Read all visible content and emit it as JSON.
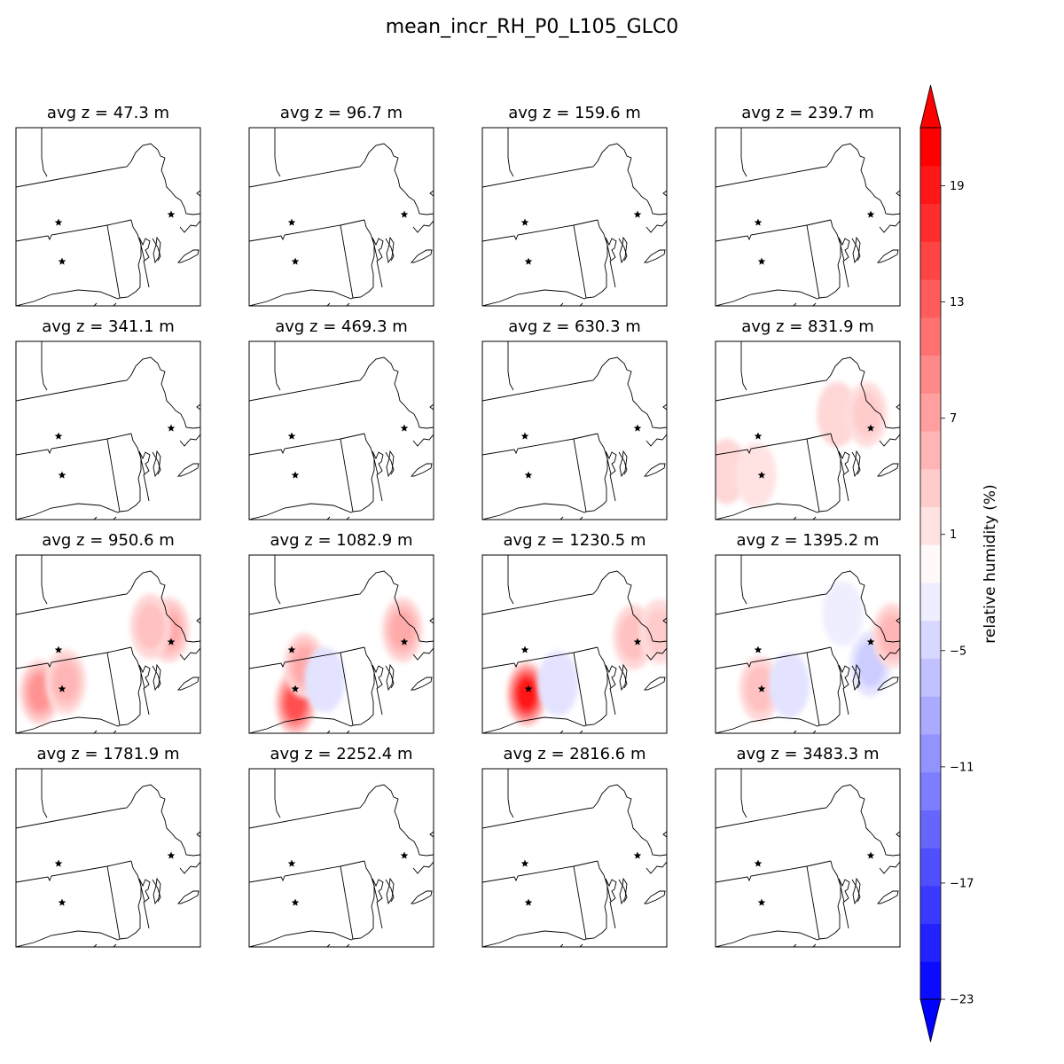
{
  "figure": {
    "title": "mean_incr_RH_P0_L105_GLC0"
  },
  "chart_data": {
    "type": "contour-map-grid",
    "title": "mean_incr_RH_P0_L105_GLC0",
    "grid": [
      4,
      4
    ],
    "panels": [
      {
        "title": "avg z = 47.3 m",
        "blobs": []
      },
      {
        "title": "avg z = 96.7 m",
        "blobs": []
      },
      {
        "title": "avg z = 159.6 m",
        "blobs": []
      },
      {
        "title": "avg z = 239.7 m",
        "blobs": []
      },
      {
        "title": "avg z = 341.1 m",
        "blobs": []
      },
      {
        "title": "avg z = 469.3 m",
        "blobs": []
      },
      {
        "title": "avg z = 630.3 m",
        "blobs": []
      },
      {
        "title": "avg z = 831.9 m",
        "blobs": [
          {
            "x": 0.66,
            "y": 0.41,
            "value": 3
          },
          {
            "x": 0.82,
            "y": 0.41,
            "value": 4
          },
          {
            "x": 0.06,
            "y": 0.73,
            "value": 3
          },
          {
            "x": 0.22,
            "y": 0.75,
            "value": 2
          }
        ]
      },
      {
        "title": "avg z = 950.6 m",
        "blobs": [
          {
            "x": 0.13,
            "y": 0.77,
            "value": 9
          },
          {
            "x": 0.27,
            "y": 0.71,
            "value": 6
          },
          {
            "x": 0.83,
            "y": 0.42,
            "value": 7
          },
          {
            "x": 0.73,
            "y": 0.4,
            "value": 5
          }
        ]
      },
      {
        "title": "avg z = 1082.9 m",
        "blobs": [
          {
            "x": 0.25,
            "y": 0.83,
            "value": 15
          },
          {
            "x": 0.3,
            "y": 0.62,
            "value": 7
          },
          {
            "x": 0.41,
            "y": 0.7,
            "value": -3
          },
          {
            "x": 0.83,
            "y": 0.42,
            "value": 7
          }
        ]
      },
      {
        "title": "avg z = 1230.5 m",
        "blobs": [
          {
            "x": 0.24,
            "y": 0.78,
            "value": 20
          },
          {
            "x": 0.41,
            "y": 0.72,
            "value": -3
          },
          {
            "x": 0.82,
            "y": 0.46,
            "value": 5
          },
          {
            "x": 0.96,
            "y": 0.43,
            "value": 4
          }
        ]
      },
      {
        "title": "avg z = 1395.2 m",
        "blobs": [
          {
            "x": 0.24,
            "y": 0.75,
            "value": 5
          },
          {
            "x": 0.4,
            "y": 0.73,
            "value": -3
          },
          {
            "x": 0.84,
            "y": 0.61,
            "value": -5
          },
          {
            "x": 0.96,
            "y": 0.45,
            "value": 6
          },
          {
            "x": 0.69,
            "y": 0.33,
            "value": -2
          }
        ]
      },
      {
        "title": "avg z = 1781.9 m",
        "blobs": []
      },
      {
        "title": "avg z = 2252.4 m",
        "blobs": []
      },
      {
        "title": "avg z = 2816.6 m",
        "blobs": []
      },
      {
        "title": "avg z = 3483.3 m",
        "blobs": []
      }
    ],
    "colorbar": {
      "label": "relative humidity (%)",
      "min": -23,
      "max": 22,
      "step": 2,
      "ticks": [
        19,
        13,
        7,
        1,
        -5,
        -11,
        -17,
        -23
      ],
      "tick_labels": [
        "19",
        "13",
        "7",
        "1",
        "−5",
        "−11",
        "−17",
        "−23"
      ],
      "colormap": "bwr",
      "extend": "both"
    },
    "markers": {
      "symbol": "star",
      "color": "#000000"
    }
  }
}
